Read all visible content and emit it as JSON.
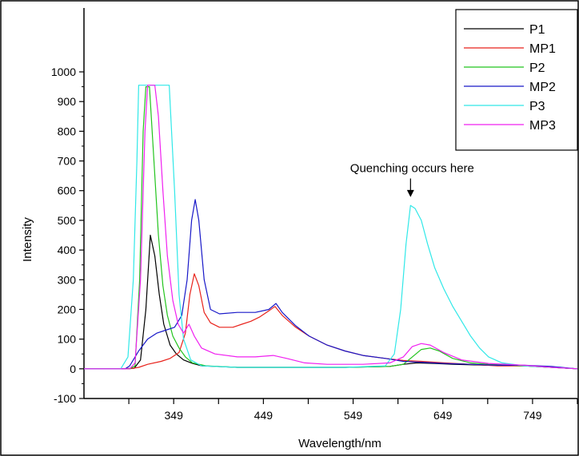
{
  "chart_data": {
    "type": "line",
    "title": "",
    "xlabel": "Wavelength/nm",
    "ylabel": "Intensity",
    "xlim": [
      249,
      799
    ],
    "ylim": [
      -100,
      1000
    ],
    "x_ticks": [
      349,
      449,
      549,
      649,
      749
    ],
    "y_ticks": [
      -100,
      0,
      100,
      200,
      300,
      400,
      500,
      600,
      700,
      800,
      900,
      1000
    ],
    "grid": false,
    "legend": "top-right",
    "annotation": {
      "text": "Quenching occurs here",
      "x": 613,
      "y": 555
    },
    "series": [
      {
        "name": "P1",
        "color": "#000000",
        "points": [
          [
            249,
            0
          ],
          [
            290,
            0
          ],
          [
            305,
            2
          ],
          [
            312,
            30
          ],
          [
            318,
            200
          ],
          [
            323,
            450
          ],
          [
            328,
            380
          ],
          [
            333,
            250
          ],
          [
            338,
            150
          ],
          [
            345,
            80
          ],
          [
            352,
            50
          ],
          [
            360,
            30
          ],
          [
            370,
            18
          ],
          [
            380,
            10
          ],
          [
            420,
            5
          ],
          [
            480,
            5
          ],
          [
            540,
            5
          ],
          [
            590,
            8
          ],
          [
            605,
            15
          ],
          [
            620,
            20
          ],
          [
            640,
            18
          ],
          [
            660,
            15
          ],
          [
            700,
            12
          ],
          [
            740,
            10
          ],
          [
            770,
            5
          ],
          [
            799,
            0
          ]
        ]
      },
      {
        "name": "MP1",
        "color": "#e8221b",
        "points": [
          [
            249,
            0
          ],
          [
            300,
            0
          ],
          [
            310,
            5
          ],
          [
            320,
            15
          ],
          [
            335,
            25
          ],
          [
            345,
            35
          ],
          [
            355,
            55
          ],
          [
            362,
            120
          ],
          [
            367,
            250
          ],
          [
            372,
            320
          ],
          [
            377,
            280
          ],
          [
            383,
            190
          ],
          [
            390,
            155
          ],
          [
            400,
            140
          ],
          [
            415,
            140
          ],
          [
            425,
            150
          ],
          [
            435,
            160
          ],
          [
            445,
            175
          ],
          [
            455,
            195
          ],
          [
            462,
            210
          ],
          [
            470,
            180
          ],
          [
            485,
            140
          ],
          [
            500,
            110
          ],
          [
            520,
            80
          ],
          [
            540,
            60
          ],
          [
            560,
            45
          ],
          [
            585,
            35
          ],
          [
            605,
            28
          ],
          [
            625,
            25
          ],
          [
            650,
            20
          ],
          [
            680,
            15
          ],
          [
            710,
            10
          ],
          [
            740,
            10
          ],
          [
            770,
            5
          ],
          [
            799,
            0
          ]
        ]
      },
      {
        "name": "P2",
        "color": "#22c41d",
        "points": [
          [
            249,
            0
          ],
          [
            300,
            0
          ],
          [
            306,
            10
          ],
          [
            311,
            300
          ],
          [
            315,
            800
          ],
          [
            318,
            950
          ],
          [
            322,
            950
          ],
          [
            327,
            700
          ],
          [
            332,
            450
          ],
          [
            337,
            280
          ],
          [
            342,
            180
          ],
          [
            348,
            110
          ],
          [
            355,
            70
          ],
          [
            362,
            40
          ],
          [
            370,
            20
          ],
          [
            385,
            10
          ],
          [
            420,
            5
          ],
          [
            480,
            5
          ],
          [
            540,
            5
          ],
          [
            590,
            8
          ],
          [
            605,
            15
          ],
          [
            615,
            40
          ],
          [
            625,
            65
          ],
          [
            635,
            70
          ],
          [
            645,
            60
          ],
          [
            660,
            35
          ],
          [
            680,
            20
          ],
          [
            700,
            15
          ],
          [
            740,
            10
          ],
          [
            770,
            5
          ],
          [
            799,
            0
          ]
        ]
      },
      {
        "name": "MP2",
        "color": "#1818c8",
        "points": [
          [
            249,
            0
          ],
          [
            295,
            0
          ],
          [
            300,
            10
          ],
          [
            310,
            60
          ],
          [
            320,
            100
          ],
          [
            330,
            120
          ],
          [
            340,
            130
          ],
          [
            350,
            140
          ],
          [
            358,
            180
          ],
          [
            364,
            300
          ],
          [
            369,
            500
          ],
          [
            373,
            570
          ],
          [
            377,
            500
          ],
          [
            383,
            300
          ],
          [
            390,
            200
          ],
          [
            400,
            185
          ],
          [
            420,
            190
          ],
          [
            440,
            190
          ],
          [
            455,
            200
          ],
          [
            463,
            220
          ],
          [
            470,
            190
          ],
          [
            485,
            145
          ],
          [
            500,
            110
          ],
          [
            520,
            80
          ],
          [
            540,
            60
          ],
          [
            560,
            45
          ],
          [
            585,
            35
          ],
          [
            605,
            25
          ],
          [
            625,
            22
          ],
          [
            650,
            18
          ],
          [
            680,
            15
          ],
          [
            710,
            12
          ],
          [
            740,
            12
          ],
          [
            770,
            8
          ],
          [
            799,
            0
          ]
        ]
      },
      {
        "name": "P3",
        "color": "#30e8e8",
        "points": [
          [
            249,
            0
          ],
          [
            290,
            0
          ],
          [
            298,
            40
          ],
          [
            304,
            300
          ],
          [
            308,
            700
          ],
          [
            310,
            955
          ],
          [
            344,
            955
          ],
          [
            350,
            600
          ],
          [
            355,
            250
          ],
          [
            360,
            100
          ],
          [
            368,
            30
          ],
          [
            380,
            10
          ],
          [
            420,
            5
          ],
          [
            480,
            5
          ],
          [
            540,
            5
          ],
          [
            585,
            10
          ],
          [
            595,
            50
          ],
          [
            602,
            200
          ],
          [
            608,
            420
          ],
          [
            613,
            550
          ],
          [
            618,
            540
          ],
          [
            625,
            500
          ],
          [
            632,
            420
          ],
          [
            640,
            340
          ],
          [
            650,
            270
          ],
          [
            660,
            210
          ],
          [
            670,
            160
          ],
          [
            680,
            110
          ],
          [
            690,
            70
          ],
          [
            700,
            40
          ],
          [
            715,
            20
          ],
          [
            740,
            10
          ],
          [
            770,
            5
          ],
          [
            799,
            0
          ]
        ]
      },
      {
        "name": "MP3",
        "color": "#f020f0",
        "points": [
          [
            249,
            0
          ],
          [
            300,
            0
          ],
          [
            306,
            20
          ],
          [
            312,
            300
          ],
          [
            317,
            800
          ],
          [
            320,
            955
          ],
          [
            328,
            955
          ],
          [
            332,
            850
          ],
          [
            337,
            600
          ],
          [
            342,
            380
          ],
          [
            348,
            230
          ],
          [
            354,
            150
          ],
          [
            360,
            120
          ],
          [
            366,
            150
          ],
          [
            372,
            110
          ],
          [
            380,
            70
          ],
          [
            395,
            50
          ],
          [
            420,
            40
          ],
          [
            440,
            40
          ],
          [
            460,
            45
          ],
          [
            475,
            35
          ],
          [
            495,
            20
          ],
          [
            520,
            15
          ],
          [
            560,
            15
          ],
          [
            590,
            20
          ],
          [
            605,
            40
          ],
          [
            615,
            75
          ],
          [
            625,
            85
          ],
          [
            635,
            80
          ],
          [
            650,
            55
          ],
          [
            670,
            30
          ],
          [
            700,
            18
          ],
          [
            740,
            12
          ],
          [
            770,
            5
          ],
          [
            799,
            0
          ]
        ]
      }
    ]
  }
}
